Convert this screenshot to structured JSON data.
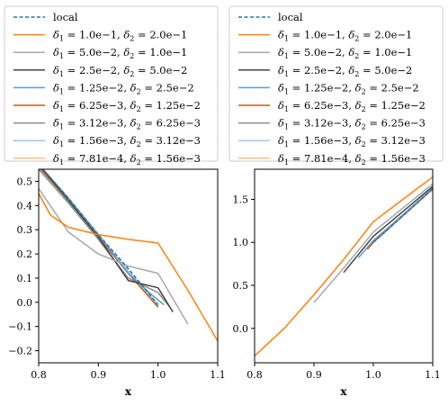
{
  "chart_data": [
    {
      "type": "line",
      "xlabel": "x",
      "ylabel": "",
      "xlim": [
        0.8,
        1.1
      ],
      "ylim": [
        -0.25,
        0.55
      ],
      "xticks": [
        "0.8",
        "0.9",
        "1.0",
        "1.1"
      ],
      "yticks": [
        "−0.2",
        "−0.1",
        "0.0",
        "0.1",
        "0.2",
        "0.3",
        "0.4",
        "0.5"
      ],
      "ytick_values": [
        -0.2,
        -0.1,
        0.0,
        0.1,
        0.2,
        0.3,
        0.4,
        0.5
      ],
      "legend_position": "above",
      "series": [
        {
          "name": "local",
          "color": "#1f77b4",
          "dashed": true,
          "x": [
            0.8,
            0.85,
            0.9,
            0.95,
            1.0
          ],
          "y": [
            0.57,
            0.43,
            0.28,
            0.14,
            -0.01
          ]
        },
        {
          "name": "δ1 = 1.0e−1, δ2 = 2.0e−1",
          "color": "#ff7f0e",
          "x": [
            0.8,
            0.82,
            0.85,
            0.9,
            0.95,
            1.0,
            1.05,
            1.1
          ],
          "y": [
            0.45,
            0.36,
            0.31,
            0.28,
            0.26,
            0.245,
            0.05,
            -0.16
          ]
        },
        {
          "name": "δ1 = 5.0e−2, δ2 = 1.0e−1",
          "color": "#a8a8a8",
          "x": [
            0.8,
            0.85,
            0.9,
            0.95,
            1.0,
            1.05
          ],
          "y": [
            0.47,
            0.29,
            0.2,
            0.15,
            0.12,
            -0.09
          ]
        },
        {
          "name": "δ1 = 2.5e−2, δ2 = 5.0e−2",
          "color": "#444444",
          "x": [
            0.8,
            0.85,
            0.9,
            0.95,
            1.0,
            1.025
          ],
          "y": [
            0.57,
            0.42,
            0.27,
            0.09,
            0.06,
            -0.04
          ]
        },
        {
          "name": "δ1 = 1.25e−2, δ2 = 2.5e−2",
          "color": "#5e9cc2",
          "x": [
            0.8,
            0.85,
            0.9,
            0.95,
            0.99,
            1.01
          ],
          "y": [
            0.57,
            0.43,
            0.28,
            0.12,
            0.03,
            -0.01
          ]
        },
        {
          "name": "δ1 = 6.25e−3, δ2 = 1.25e−2",
          "color": "#c85a18",
          "x": [
            0.8,
            0.85,
            0.9,
            0.95,
            1.0
          ],
          "y": [
            0.56,
            0.42,
            0.27,
            0.12,
            -0.02
          ]
        },
        {
          "name": "δ1 = 3.12e−3, δ2 = 6.25e−3",
          "color": "#8c8c8c",
          "x": [
            0.8,
            0.85,
            0.9,
            0.95,
            1.0,
            1.02
          ],
          "y": [
            0.55,
            0.41,
            0.26,
            0.1,
            0.04,
            -0.02
          ]
        },
        {
          "name": "δ1 = 1.56e−3, δ2 = 3.12e−3",
          "color": "#9ec9e8",
          "x": [
            0.8,
            0.85,
            0.9,
            0.95,
            1.0
          ],
          "y": [
            0.57,
            0.43,
            0.28,
            0.13,
            -0.01
          ]
        },
        {
          "name": "δ1 = 7.81e−4, δ2 = 1.56e−3",
          "color": "#ffc27a",
          "x": [
            0.8,
            0.85,
            0.9,
            0.95,
            1.0
          ],
          "y": [
            0.565,
            0.425,
            0.275,
            0.13,
            -0.015
          ]
        }
      ]
    },
    {
      "type": "line",
      "xlabel": "x",
      "ylabel": "",
      "xlim": [
        0.8,
        1.1
      ],
      "ylim": [
        -0.4,
        1.85
      ],
      "xticks": [
        "0.8",
        "0.9",
        "1.0",
        "1.1"
      ],
      "yticks": [
        "0.0",
        "0.5",
        "1.0",
        "1.5"
      ],
      "ytick_values": [
        0.0,
        0.5,
        1.0,
        1.5
      ],
      "legend_position": "above",
      "series": [
        {
          "name": "local",
          "color": "#1f77b4",
          "dashed": true,
          "x": [
            1.0,
            1.05,
            1.1
          ],
          "y": [
            1.0,
            1.31,
            1.62
          ]
        },
        {
          "name": "δ1 = 1.0e−1, δ2 = 2.0e−1",
          "color": "#ff7f0e",
          "x": [
            0.8,
            0.85,
            0.9,
            0.95,
            1.0,
            1.05,
            1.1
          ],
          "y": [
            -0.32,
            0.0,
            0.39,
            0.8,
            1.24,
            1.5,
            1.76
          ]
        },
        {
          "name": "δ1 = 5.0e−2, δ2 = 1.0e−1",
          "color": "#a8a8a8",
          "x": [
            0.9,
            0.95,
            1.0,
            1.05,
            1.1
          ],
          "y": [
            0.3,
            0.7,
            1.12,
            1.4,
            1.68
          ]
        },
        {
          "name": "δ1 = 2.5e−2, δ2 = 5.0e−2",
          "color": "#444444",
          "x": [
            0.95,
            1.0,
            1.05,
            1.1
          ],
          "y": [
            0.65,
            1.07,
            1.36,
            1.65
          ]
        },
        {
          "name": "δ1 = 1.25e−2, δ2 = 2.5e−2",
          "color": "#5e9cc2",
          "x": [
            0.975,
            1.0,
            1.05,
            1.1
          ],
          "y": [
            0.82,
            1.02,
            1.32,
            1.63
          ]
        },
        {
          "name": "δ1 = 6.25e−3, δ2 = 1.25e−2",
          "color": "#c85a18",
          "x": [
            0.99,
            1.0,
            1.05,
            1.1
          ],
          "y": [
            0.92,
            1.0,
            1.31,
            1.62
          ]
        },
        {
          "name": "δ1 = 3.12e−3, δ2 = 6.25e−3",
          "color": "#8c8c8c",
          "x": [
            0.995,
            1.0,
            1.05,
            1.1
          ],
          "y": [
            0.96,
            1.01,
            1.32,
            1.63
          ]
        },
        {
          "name": "δ1 = 1.56e−3, δ2 = 3.12e−3",
          "color": "#9ec9e8",
          "x": [
            1.0,
            1.05,
            1.1
          ],
          "y": [
            1.0,
            1.31,
            1.62
          ]
        },
        {
          "name": "δ1 = 7.81e−4, δ2 = 1.56e−3",
          "color": "#ffc27a",
          "x": [
            1.0,
            1.05,
            1.1
          ],
          "y": [
            1.0,
            1.31,
            1.62
          ]
        }
      ]
    }
  ]
}
